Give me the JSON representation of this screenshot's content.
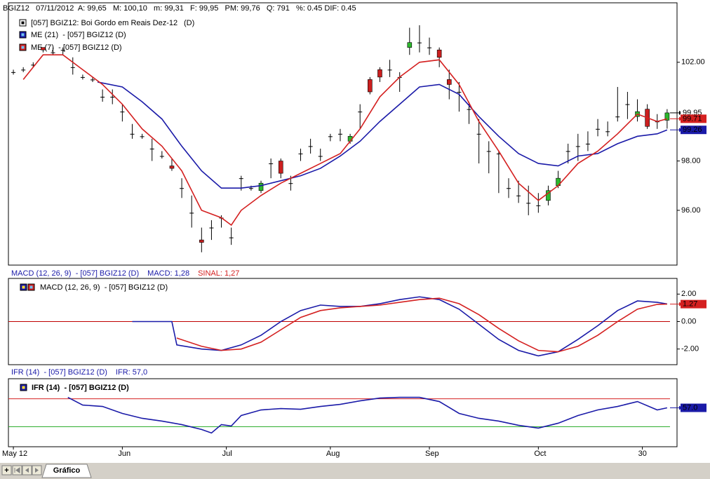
{
  "tab": "Gráfico",
  "chart_data": [
    {
      "type": "candlestick",
      "title": "BGIZ12   07/11/2012  A: 99,65   M: 100,10   m: 99,31   F: 99,95   PM: 99,76   Q: 791   %: 0.45 DIF: 0.45",
      "name": "[057] BGIZ12: Boi Gordo em Reais Dez-12",
      "name_suffix": "(D)",
      "colors": {
        "up": "#2db82d",
        "down": "#cc1f1f",
        "flat": "#000000"
      },
      "xlim": [
        -1,
        134
      ],
      "x": [
        0,
        2,
        4,
        6,
        8,
        10,
        12,
        14,
        16,
        18,
        20,
        22,
        24,
        26,
        28,
        30,
        32,
        34,
        36,
        38,
        40,
        42,
        44,
        46,
        48,
        50,
        52,
        54,
        56,
        58,
        60,
        62,
        64,
        66,
        68,
        70,
        72,
        74,
        76,
        78,
        80,
        82,
        84,
        86,
        88,
        90,
        92,
        94,
        96,
        98,
        100,
        102,
        104,
        106,
        108,
        110,
        112,
        114,
        116,
        118,
        120,
        122,
        124,
        126,
        128,
        130,
        132
      ],
      "open": [
        101.6,
        101.7,
        101.9,
        102.6,
        102.4,
        102.5,
        101.8,
        101.4,
        101.3,
        100.6,
        100.6,
        100.0,
        99.1,
        99.0,
        98.5,
        98.2,
        97.8,
        96.9,
        95.9,
        94.8,
        95.3,
        95.7,
        94.9,
        97.3,
        96.9,
        96.8,
        97.9,
        98.0,
        97.1,
        98.3,
        98.6,
        98.2,
        99.0,
        99.1,
        98.8,
        100.0,
        101.3,
        101.7,
        101.7,
        101.4,
        102.6,
        102.8,
        102.6,
        102.5,
        101.3,
        100.8,
        100.1,
        99.1,
        98.4,
        98.3,
        96.9,
        96.6,
        96.3,
        96.2,
        96.4,
        97.0,
        98.4,
        98.6,
        98.7,
        99.3,
        99.2,
        99.8,
        100.3,
        99.8,
        100.1,
        99.6,
        99.65
      ],
      "high": [
        101.7,
        101.8,
        102.0,
        102.6,
        102.6,
        102.6,
        102.2,
        101.5,
        101.4,
        100.9,
        100.9,
        100.3,
        99.5,
        99.1,
        98.9,
        98.4,
        98.1,
        97.3,
        96.6,
        95.3,
        95.6,
        95.8,
        95.3,
        97.4,
        97.0,
        97.2,
        98.1,
        98.1,
        97.4,
        98.5,
        98.9,
        98.5,
        99.1,
        99.3,
        99.1,
        100.3,
        101.4,
        101.8,
        102.1,
        101.6,
        103.4,
        103.5,
        103.0,
        102.6,
        101.7,
        101.2,
        100.4,
        99.7,
        98.8,
        98.4,
        97.3,
        97.2,
        97.0,
        96.7,
        97.0,
        97.6,
        98.7,
        99.1,
        99.2,
        99.7,
        99.6,
        101.0,
        100.8,
        100.5,
        100.3,
        99.9,
        100.1
      ],
      "low": [
        101.5,
        101.6,
        101.8,
        102.4,
        102.3,
        102.3,
        101.5,
        101.3,
        101.2,
        100.4,
        100.3,
        99.6,
        98.9,
        98.9,
        98.0,
        98.1,
        97.6,
        96.5,
        95.3,
        94.3,
        94.8,
        95.3,
        94.6,
        96.8,
        96.8,
        96.7,
        97.3,
        97.3,
        96.8,
        98.0,
        98.3,
        98.0,
        98.8,
        98.8,
        98.7,
        99.3,
        100.7,
        101.2,
        101.4,
        100.8,
        102.3,
        102.4,
        102.3,
        101.8,
        100.5,
        100.0,
        99.5,
        97.9,
        97.5,
        96.7,
        96.5,
        96.3,
        95.8,
        95.9,
        96.2,
        96.9,
        97.9,
        98.0,
        98.4,
        99.0,
        99.0,
        99.6,
        99.7,
        99.6,
        99.3,
        99.3,
        99.31
      ],
      "close": [
        101.6,
        101.7,
        101.9,
        102.5,
        102.4,
        102.5,
        101.8,
        101.4,
        101.3,
        100.6,
        100.6,
        100.0,
        99.1,
        99.0,
        98.5,
        98.2,
        97.7,
        96.9,
        95.9,
        94.7,
        95.3,
        95.7,
        94.9,
        97.3,
        96.9,
        97.1,
        97.9,
        97.5,
        97.1,
        98.3,
        98.6,
        98.2,
        99.0,
        99.1,
        99.0,
        100.0,
        100.8,
        101.4,
        101.7,
        101.4,
        102.8,
        102.8,
        102.6,
        102.2,
        101.1,
        100.8,
        100.1,
        99.1,
        98.4,
        98.3,
        96.9,
        96.6,
        96.3,
        96.2,
        96.8,
        97.3,
        98.4,
        98.6,
        98.7,
        99.3,
        99.2,
        99.8,
        100.3,
        100.0,
        99.4,
        99.6,
        99.95
      ],
      "last_label": "99.95",
      "overlays": [
        {
          "name": "ME (21)  - [057] BGIZ12 (D)",
          "color": "#1a1aa8",
          "x": [
            17,
            22,
            26,
            30,
            34,
            38,
            42,
            46,
            50,
            54,
            58,
            62,
            66,
            70,
            74,
            78,
            82,
            86,
            90,
            94,
            98,
            102,
            106,
            110,
            114,
            118,
            122,
            126,
            130,
            132
          ],
          "values": [
            101.2,
            101.0,
            100.4,
            99.7,
            98.6,
            97.6,
            96.9,
            96.9,
            97.0,
            97.2,
            97.4,
            97.7,
            98.2,
            98.8,
            99.6,
            100.3,
            101.0,
            101.1,
            100.7,
            99.8,
            99.0,
            98.3,
            97.9,
            97.8,
            98.2,
            98.3,
            98.7,
            99.0,
            99.1,
            99.26
          ],
          "last_label": "99.26"
        },
        {
          "name": "ME (7)  - [057] BGIZ12 (D)",
          "color": "#d42020",
          "x": [
            2,
            6,
            10,
            14,
            18,
            22,
            26,
            30,
            34,
            38,
            42,
            44,
            46,
            50,
            54,
            58,
            62,
            66,
            70,
            74,
            78,
            82,
            86,
            90,
            94,
            98,
            102,
            106,
            110,
            114,
            118,
            122,
            126,
            130,
            132
          ],
          "values": [
            101.3,
            102.3,
            102.3,
            101.7,
            101.1,
            100.3,
            99.3,
            98.6,
            97.6,
            96.0,
            95.7,
            95.4,
            96.0,
            96.6,
            97.1,
            97.5,
            97.9,
            98.3,
            99.3,
            100.6,
            101.4,
            102.0,
            102.1,
            101.1,
            99.6,
            98.4,
            97.1,
            96.4,
            97.0,
            97.9,
            98.4,
            99.1,
            99.9,
            99.6,
            99.71
          ],
          "last_label": "99.71"
        }
      ],
      "ylim": [
        93.78,
        104.41
      ],
      "yticks": [
        {
          "value": 96,
          "label": "96.00"
        },
        {
          "value": 98,
          "label": "98.00"
        },
        {
          "value": 102,
          "label": "102.00"
        }
      ]
    },
    {
      "type": "line",
      "header": [
        {
          "text": "MACD (12, 26, 9)  - [057] BGIZ12 (D)",
          "color": "#1a1aa8"
        },
        {
          "text": "MACD: 1,28",
          "color": "#1a1aa8"
        },
        {
          "text": "SINAL: 1,27",
          "color": "#d42020"
        }
      ],
      "legend": "MACD (12, 26, 9)  - [057] BGIZ12 (D)",
      "xlim": [
        -1,
        134
      ],
      "reference_line": {
        "value": 0,
        "color": "#c00000"
      },
      "series": [
        {
          "color": "#1a1aa8",
          "x": [
            24,
            32,
            33,
            38,
            42,
            46,
            50,
            54,
            58,
            62,
            66,
            70,
            74,
            78,
            82,
            86,
            90,
            94,
            98,
            102,
            106,
            110,
            114,
            118,
            122,
            126,
            130,
            132
          ],
          "values": [
            0,
            0,
            -1.7,
            -2.0,
            -2.1,
            -1.7,
            -1.0,
            0.0,
            0.8,
            1.2,
            1.1,
            1.1,
            1.3,
            1.6,
            1.8,
            1.6,
            0.9,
            -0.2,
            -1.3,
            -2.1,
            -2.5,
            -2.2,
            -1.3,
            -0.3,
            0.8,
            1.5,
            1.4,
            1.28
          ]
        },
        {
          "color": "#d42020",
          "x": [
            33,
            38,
            42,
            46,
            50,
            54,
            58,
            62,
            66,
            70,
            74,
            78,
            82,
            86,
            90,
            94,
            98,
            102,
            106,
            110,
            114,
            118,
            122,
            126,
            130,
            132
          ],
          "values": [
            -1.2,
            -1.8,
            -2.1,
            -2.0,
            -1.5,
            -0.6,
            0.3,
            0.8,
            1.0,
            1.1,
            1.2,
            1.4,
            1.6,
            1.7,
            1.3,
            0.5,
            -0.5,
            -1.4,
            -2.1,
            -2.2,
            -1.8,
            -1.0,
            0.0,
            0.9,
            1.25,
            1.27
          ],
          "last_label": "1.27"
        }
      ],
      "ylim": [
        -3.14,
        3.14
      ],
      "yticks": [
        {
          "value": -2,
          "label": "-2.00"
        },
        {
          "value": 0,
          "label": "0.00"
        },
        {
          "value": 2,
          "label": "2.00"
        }
      ]
    },
    {
      "type": "line",
      "header": [
        {
          "text": "IFR (14)  - [057] BGIZ12 (D)",
          "color": "#1a1aa8"
        },
        {
          "text": "IFR: 57,0",
          "color": "#1a1aa8"
        }
      ],
      "legend": "IFR (14)  - [057] BGIZ12 (D)",
      "xlim": [
        -1,
        134
      ],
      "levels": [
        {
          "value": 70,
          "color": "#d42020"
        },
        {
          "value": 30,
          "color": "#22aa22"
        }
      ],
      "series": [
        {
          "color": "#1a1aa8",
          "x": [
            11,
            14,
            18,
            22,
            26,
            30,
            34,
            38,
            40,
            42,
            44,
            46,
            50,
            54,
            58,
            62,
            66,
            70,
            74,
            78,
            82,
            86,
            90,
            94,
            98,
            102,
            106,
            110,
            114,
            118,
            122,
            126,
            130,
            132
          ],
          "values": [
            72,
            61,
            59,
            49,
            42,
            38,
            33,
            26,
            21,
            33,
            31,
            46,
            54,
            56,
            55,
            59,
            62,
            67,
            71,
            72,
            72,
            66,
            49,
            42,
            38,
            32,
            28,
            35,
            46,
            54,
            59,
            66,
            54,
            57
          ],
          "last_label": "57.0"
        }
      ],
      "ylim": [
        1.3,
        98.7
      ],
      "xticks": [
        {
          "value": 0,
          "label": "May 12"
        },
        {
          "value": 22,
          "label": "Jun"
        },
        {
          "value": 43,
          "label": "Jul"
        },
        {
          "value": 64,
          "label": "Aug"
        },
        {
          "value": 84,
          "label": "Sep"
        },
        {
          "value": 106,
          "label": "Oct"
        },
        {
          "value": 127,
          "label": "30"
        }
      ]
    }
  ]
}
